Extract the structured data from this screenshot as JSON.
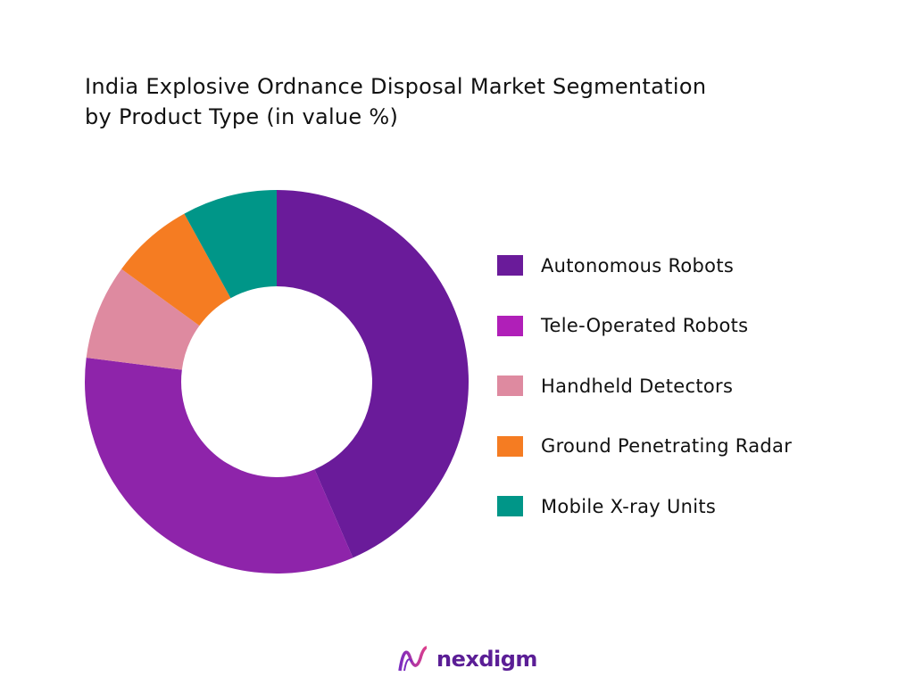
{
  "chart_data": {
    "type": "pie",
    "donut": true,
    "title": "India Explosive Ordnance Disposal Market Segmentation by Product Type (in value %)",
    "title_lines": [
      "India Explosive Ordnance Disposal Market Segmentation",
      "by Product Type (in value %)"
    ],
    "categories": [
      "Autonomous Robots",
      "Tele-Operated Robots",
      "Handheld Detectors",
      "Ground Penetrating Radar",
      "Mobile X-ray Units"
    ],
    "values": [
      43.5,
      33.5,
      8,
      7,
      8
    ],
    "unit": "%",
    "slice_colors": [
      "#6a1b9a",
      "#8e24aa",
      "#de8aa0",
      "#f57c22",
      "#009688"
    ],
    "legend_colors": [
      "#6a1b9a",
      "#b01fb8",
      "#de8aa0",
      "#f57c22",
      "#009688"
    ],
    "legend_position": "right"
  },
  "brand": {
    "name": "nexdigm"
  }
}
